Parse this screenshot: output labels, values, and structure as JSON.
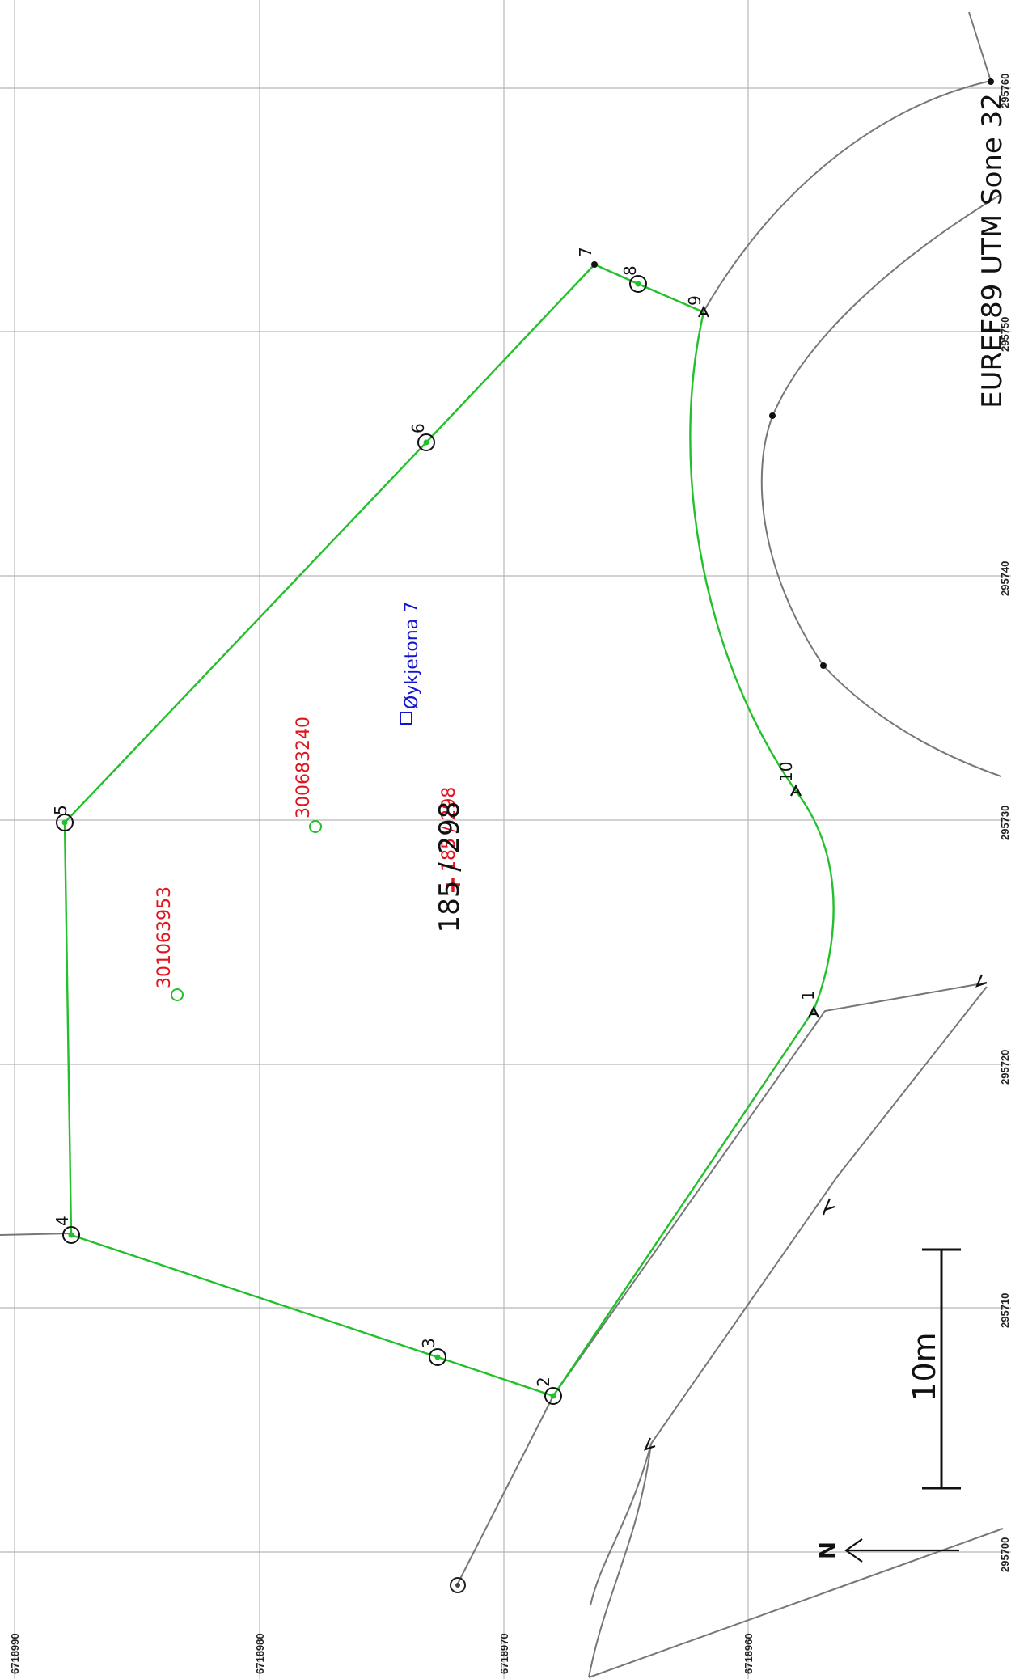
{
  "map": {
    "title": "185 / 298",
    "projection_label": "EUREF89 UTM Sone 32",
    "north_label": "N",
    "scale_label": "10m",
    "easting_labels": [
      "295700",
      "295710",
      "295720",
      "295730",
      "295740",
      "295750",
      "295760"
    ],
    "northing_labels": [
      "6718990",
      "6718980",
      "6718970",
      "6718960"
    ],
    "boundary_point_labels": [
      "1",
      "2",
      "3",
      "4",
      "5",
      "6",
      "7",
      "8",
      "9",
      "10"
    ],
    "parcel_label": "185 / 298",
    "address_label": "Øykjetona 7",
    "building_ids": [
      "301063953",
      "300683240"
    ],
    "colors": {
      "boundary": "#22c02a",
      "neighbor_lines": "#777777",
      "grid": "#b8b8b8",
      "red_text": "#e0141e",
      "address_text": "#1515d0"
    }
  }
}
